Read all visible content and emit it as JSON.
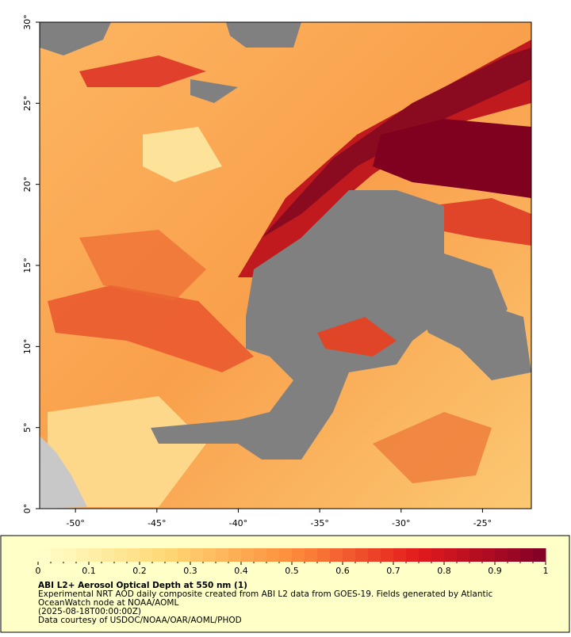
{
  "map": {
    "xlim": [
      -52.2,
      -22
    ],
    "ylim": [
      0,
      30
    ],
    "lat_ticks": [
      {
        "value": 0,
        "label": "0°"
      },
      {
        "value": 5,
        "label": "5°"
      },
      {
        "value": 10,
        "label": "10°"
      },
      {
        "value": 15,
        "label": "15°"
      },
      {
        "value": 20,
        "label": "20°"
      },
      {
        "value": 25,
        "label": "25°"
      },
      {
        "value": 30,
        "label": "30°"
      }
    ],
    "lon_ticks": [
      {
        "value": -50,
        "label": "-50°"
      },
      {
        "value": -45,
        "label": "-45°"
      },
      {
        "value": -40,
        "label": "-40°"
      },
      {
        "value": -35,
        "label": "-35°"
      },
      {
        "value": -30,
        "label": "-30°"
      },
      {
        "value": -25,
        "label": "-25°"
      }
    ]
  },
  "colorbar": {
    "ticks": [
      0,
      0.1,
      0.2,
      0.3,
      0.4,
      0.5,
      0.6,
      0.7,
      0.8,
      0.9,
      1
    ]
  },
  "caption": {
    "title": "ABI L2+ Aerosol Optical Depth at 550 nm (1)",
    "lines": [
      "Experimental NRT AOD daily composite created from ABI L2 data from GOES-19. Fields generated by Atlantic",
      "OceanWatch node at NOAA/AOML",
      "(2025-08-18T00:00:00Z)",
      "Data courtesy of USDOC/NOAA/OAR/AOML/PHOD"
    ]
  }
}
